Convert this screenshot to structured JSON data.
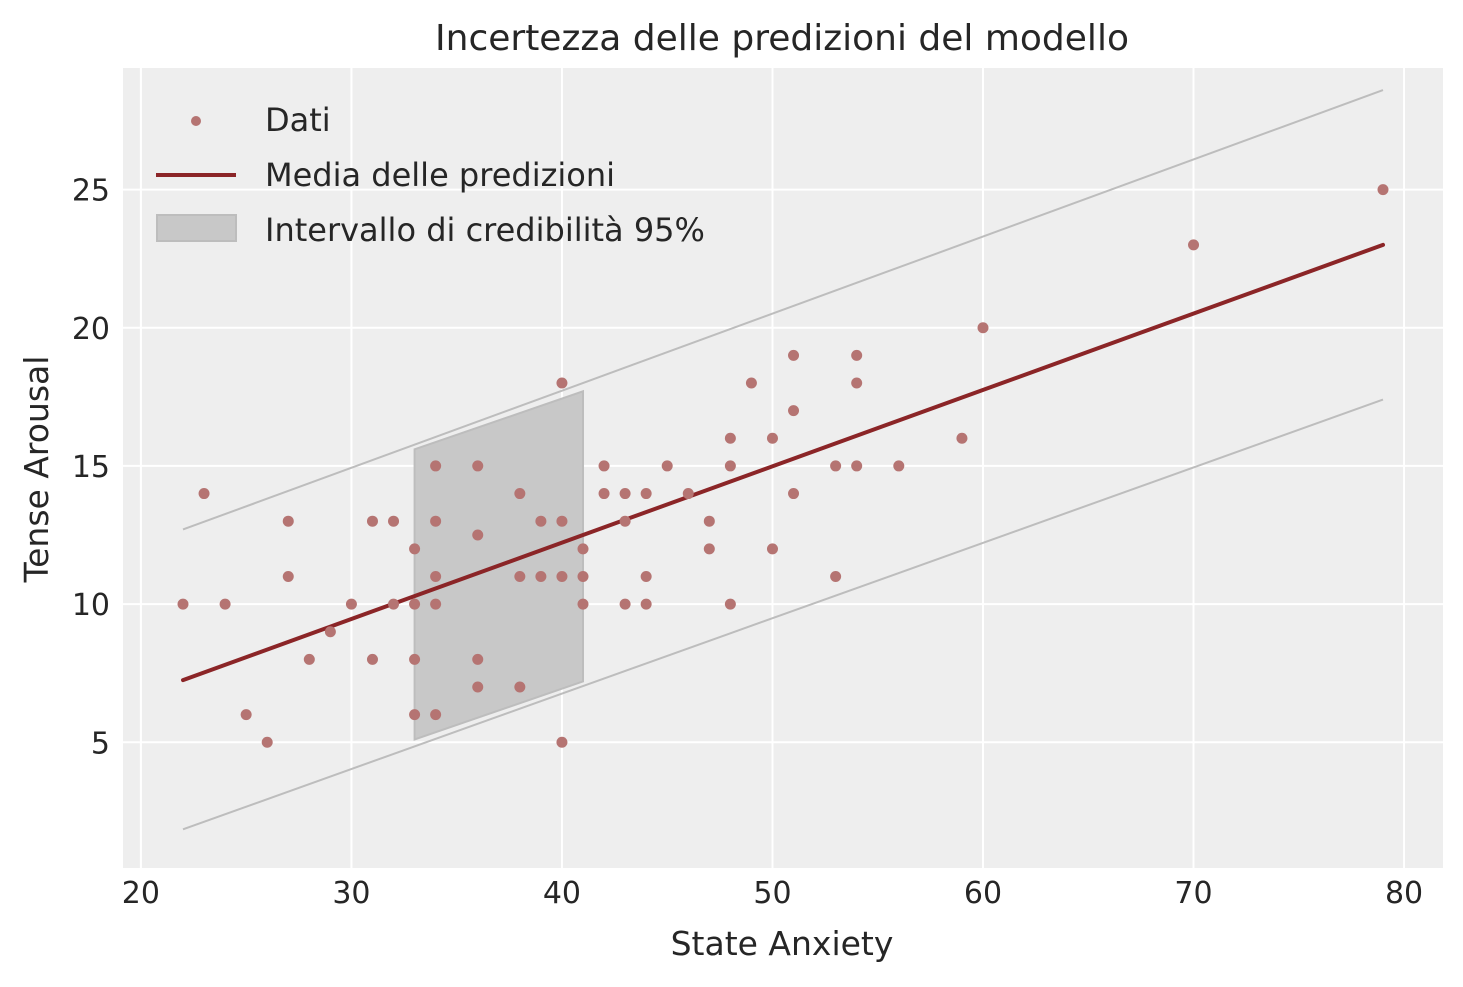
{
  "chart_data": {
    "type": "scatter",
    "title": "Incertezza delle predizioni del modello",
    "xlabel": "State Anxiety",
    "ylabel": "Tense Arousal",
    "xlim": [
      19.15,
      81.85
    ],
    "ylim": [
      0.45,
      29.4
    ],
    "xticks": [
      20,
      30,
      40,
      50,
      60,
      70,
      80
    ],
    "yticks": [
      5,
      10,
      15,
      20,
      25
    ],
    "grid": true,
    "legend_position": "top-left",
    "legend": [
      {
        "label": "Dati",
        "kind": "marker"
      },
      {
        "label": "Media delle predizioni",
        "kind": "line"
      },
      {
        "label": "Intervallo di credibilità 95%",
        "kind": "patch"
      }
    ],
    "colors": {
      "background": "#eeeeee",
      "grid": "#ffffff",
      "points": "#b57472",
      "mean_line": "#8b2527",
      "interval_fill": "#c8c8c8",
      "interval_edge": "#bdbdbd"
    },
    "mean_line": {
      "x": [
        22,
        79
      ],
      "y": [
        7.25,
        23.0
      ]
    },
    "interval_lines": {
      "upper": {
        "x": [
          22,
          79
        ],
        "y": [
          12.7,
          28.6
        ]
      },
      "lower": {
        "x": [
          22,
          79
        ],
        "y": [
          1.85,
          17.4
        ]
      }
    },
    "interval_band": {
      "x": [
        33,
        41
      ],
      "upper": [
        15.6,
        17.7
      ],
      "lower": [
        5.1,
        7.2
      ]
    },
    "points": [
      {
        "x": 22,
        "y": 10
      },
      {
        "x": 23,
        "y": 14
      },
      {
        "x": 24,
        "y": 10
      },
      {
        "x": 25,
        "y": 6
      },
      {
        "x": 26,
        "y": 5
      },
      {
        "x": 27,
        "y": 13
      },
      {
        "x": 27,
        "y": 11
      },
      {
        "x": 28,
        "y": 8
      },
      {
        "x": 29,
        "y": 9
      },
      {
        "x": 30,
        "y": 10
      },
      {
        "x": 31,
        "y": 13
      },
      {
        "x": 31,
        "y": 8
      },
      {
        "x": 32,
        "y": 13
      },
      {
        "x": 32,
        "y": 10
      },
      {
        "x": 33,
        "y": 12
      },
      {
        "x": 33,
        "y": 10
      },
      {
        "x": 33,
        "y": 8
      },
      {
        "x": 33,
        "y": 6
      },
      {
        "x": 34,
        "y": 15
      },
      {
        "x": 34,
        "y": 13
      },
      {
        "x": 34,
        "y": 11
      },
      {
        "x": 34,
        "y": 10
      },
      {
        "x": 34,
        "y": 6
      },
      {
        "x": 36,
        "y": 15
      },
      {
        "x": 36,
        "y": 12.5
      },
      {
        "x": 36,
        "y": 8
      },
      {
        "x": 36,
        "y": 7
      },
      {
        "x": 38,
        "y": 14
      },
      {
        "x": 38,
        "y": 11
      },
      {
        "x": 38,
        "y": 7
      },
      {
        "x": 39,
        "y": 13
      },
      {
        "x": 39,
        "y": 11
      },
      {
        "x": 40,
        "y": 18
      },
      {
        "x": 40,
        "y": 13
      },
      {
        "x": 40,
        "y": 11
      },
      {
        "x": 40,
        "y": 5
      },
      {
        "x": 41,
        "y": 12
      },
      {
        "x": 41,
        "y": 11
      },
      {
        "x": 41,
        "y": 10
      },
      {
        "x": 42,
        "y": 15
      },
      {
        "x": 42,
        "y": 14
      },
      {
        "x": 43,
        "y": 14
      },
      {
        "x": 43,
        "y": 13
      },
      {
        "x": 43,
        "y": 10
      },
      {
        "x": 44,
        "y": 14
      },
      {
        "x": 44,
        "y": 11
      },
      {
        "x": 44,
        "y": 10
      },
      {
        "x": 45,
        "y": 15
      },
      {
        "x": 46,
        "y": 14
      },
      {
        "x": 47,
        "y": 13
      },
      {
        "x": 47,
        "y": 12
      },
      {
        "x": 48,
        "y": 16
      },
      {
        "x": 48,
        "y": 15
      },
      {
        "x": 48,
        "y": 10
      },
      {
        "x": 49,
        "y": 18
      },
      {
        "x": 50,
        "y": 16
      },
      {
        "x": 50,
        "y": 12
      },
      {
        "x": 51,
        "y": 19
      },
      {
        "x": 51,
        "y": 17
      },
      {
        "x": 51,
        "y": 14
      },
      {
        "x": 53,
        "y": 15
      },
      {
        "x": 53,
        "y": 11
      },
      {
        "x": 54,
        "y": 19
      },
      {
        "x": 54,
        "y": 18
      },
      {
        "x": 54,
        "y": 15
      },
      {
        "x": 56,
        "y": 15
      },
      {
        "x": 59,
        "y": 16
      },
      {
        "x": 60,
        "y": 20
      },
      {
        "x": 70,
        "y": 23
      },
      {
        "x": 79,
        "y": 25
      }
    ]
  }
}
